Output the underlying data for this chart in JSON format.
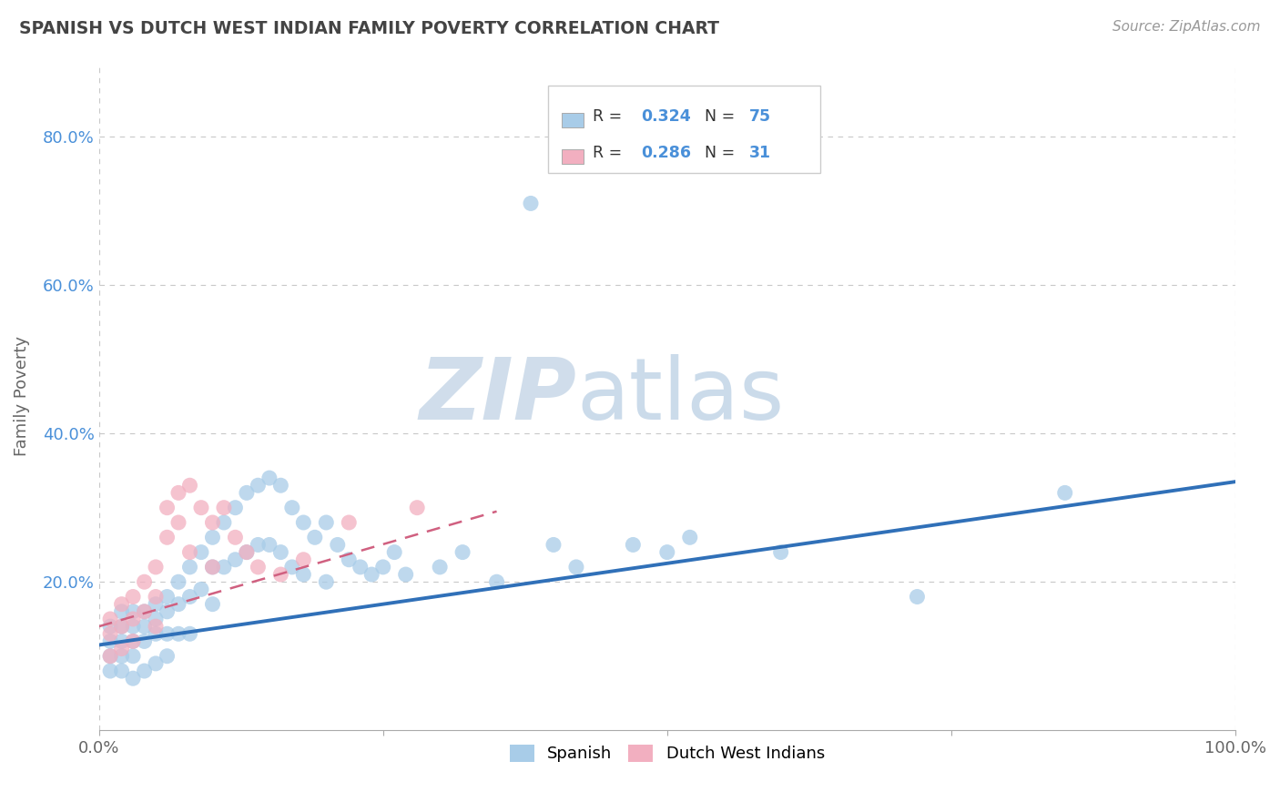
{
  "title": "SPANISH VS DUTCH WEST INDIAN FAMILY POVERTY CORRELATION CHART",
  "source": "Source: ZipAtlas.com",
  "ylabel": "Family Poverty",
  "xlim": [
    0.0,
    1.0
  ],
  "ylim": [
    0.0,
    0.9
  ],
  "xtick_positions": [
    0.0,
    0.25,
    0.5,
    0.75,
    1.0
  ],
  "xticklabels": [
    "0.0%",
    "",
    "",
    "",
    "100.0%"
  ],
  "ytick_positions": [
    0.0,
    0.2,
    0.4,
    0.6,
    0.8
  ],
  "yticklabels": [
    "",
    "20.0%",
    "40.0%",
    "60.0%",
    "80.0%"
  ],
  "watermark_zip": "ZIP",
  "watermark_atlas": "atlas",
  "legend_r1": "R = 0.324",
  "legend_n1": "N = 75",
  "legend_r2": "R = 0.286",
  "legend_n2": "N = 31",
  "spanish_color": "#a8cce8",
  "dutch_color": "#f2afc0",
  "spanish_line_color": "#3070b8",
  "dutch_line_color": "#d06080",
  "grid_color": "#c8c8c8",
  "background_color": "#ffffff",
  "title_color": "#444444",
  "source_color": "#999999",
  "ylabel_color": "#666666",
  "tick_color": "#4a90d9",
  "spanish_x": [
    0.01,
    0.01,
    0.01,
    0.01,
    0.02,
    0.02,
    0.02,
    0.02,
    0.02,
    0.03,
    0.03,
    0.03,
    0.03,
    0.03,
    0.04,
    0.04,
    0.04,
    0.04,
    0.05,
    0.05,
    0.05,
    0.05,
    0.06,
    0.06,
    0.06,
    0.06,
    0.07,
    0.07,
    0.07,
    0.08,
    0.08,
    0.08,
    0.09,
    0.09,
    0.1,
    0.1,
    0.1,
    0.11,
    0.11,
    0.12,
    0.12,
    0.13,
    0.13,
    0.14,
    0.14,
    0.15,
    0.15,
    0.16,
    0.16,
    0.17,
    0.17,
    0.18,
    0.18,
    0.19,
    0.2,
    0.2,
    0.21,
    0.22,
    0.23,
    0.24,
    0.25,
    0.26,
    0.27,
    0.3,
    0.32,
    0.35,
    0.38,
    0.4,
    0.42,
    0.47,
    0.5,
    0.52,
    0.6,
    0.72,
    0.85
  ],
  "spanish_y": [
    0.14,
    0.12,
    0.1,
    0.08,
    0.16,
    0.14,
    0.12,
    0.1,
    0.08,
    0.16,
    0.14,
    0.12,
    0.1,
    0.07,
    0.16,
    0.14,
    0.12,
    0.08,
    0.17,
    0.15,
    0.13,
    0.09,
    0.18,
    0.16,
    0.13,
    0.1,
    0.2,
    0.17,
    0.13,
    0.22,
    0.18,
    0.13,
    0.24,
    0.19,
    0.26,
    0.22,
    0.17,
    0.28,
    0.22,
    0.3,
    0.23,
    0.32,
    0.24,
    0.33,
    0.25,
    0.34,
    0.25,
    0.33,
    0.24,
    0.3,
    0.22,
    0.28,
    0.21,
    0.26,
    0.28,
    0.2,
    0.25,
    0.23,
    0.22,
    0.21,
    0.22,
    0.24,
    0.21,
    0.22,
    0.24,
    0.2,
    0.71,
    0.25,
    0.22,
    0.25,
    0.24,
    0.26,
    0.24,
    0.18,
    0.32
  ],
  "dutch_x": [
    0.01,
    0.01,
    0.01,
    0.02,
    0.02,
    0.02,
    0.03,
    0.03,
    0.03,
    0.04,
    0.04,
    0.05,
    0.05,
    0.05,
    0.06,
    0.06,
    0.07,
    0.07,
    0.08,
    0.08,
    0.09,
    0.1,
    0.1,
    0.11,
    0.12,
    0.13,
    0.14,
    0.16,
    0.18,
    0.22,
    0.28
  ],
  "dutch_y": [
    0.15,
    0.13,
    0.1,
    0.17,
    0.14,
    0.11,
    0.18,
    0.15,
    0.12,
    0.2,
    0.16,
    0.22,
    0.18,
    0.14,
    0.3,
    0.26,
    0.32,
    0.28,
    0.33,
    0.24,
    0.3,
    0.28,
    0.22,
    0.3,
    0.26,
    0.24,
    0.22,
    0.21,
    0.23,
    0.28,
    0.3
  ],
  "spanish_line_x": [
    0.0,
    1.0
  ],
  "spanish_line_y": [
    0.115,
    0.335
  ],
  "dutch_line_x": [
    0.0,
    0.35
  ],
  "dutch_line_y": [
    0.14,
    0.295
  ]
}
